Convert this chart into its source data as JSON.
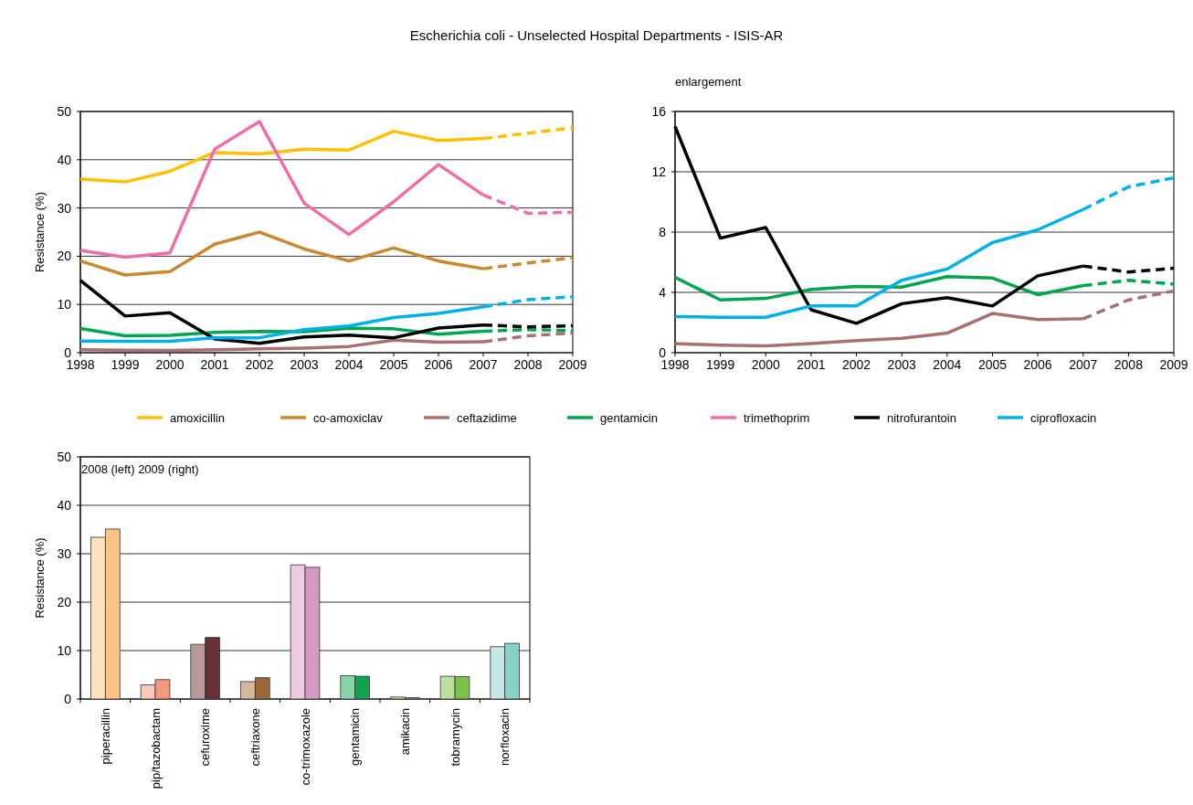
{
  "chart_data": [
    {
      "type": "line",
      "title": "Escherichia coli - Unselected Hospital Departments - ISIS-AR",
      "ylabel": "Resistance  (%)",
      "xlim": [
        1998,
        2009
      ],
      "xticks": [
        1998,
        1999,
        2000,
        2001,
        2002,
        2003,
        2004,
        2005,
        2006,
        2007,
        2008,
        2009
      ],
      "ylim": [
        0,
        50
      ],
      "yticks": [
        0,
        10,
        20,
        30,
        40,
        50
      ],
      "grid": "y",
      "legend": "bottom",
      "series": [
        {
          "name": "amoxicillin",
          "color": "#ffc000",
          "x": [
            1998,
            1999,
            2000,
            2001,
            2002,
            2003,
            2004,
            2005,
            2006,
            2007
          ],
          "values": [
            36,
            35.4,
            37.6,
            41.5,
            41.2,
            42.2,
            42,
            45.9,
            44,
            44.4
          ]
        },
        {
          "color": "#ffc000",
          "line_style": "dashed",
          "x": [
            2007,
            2008,
            2009
          ],
          "values": [
            44.4,
            45.5,
            46.6
          ]
        },
        {
          "name": "co-amoxiclav",
          "color": "#c8892f",
          "x": [
            1998,
            1999,
            2000,
            2001,
            2002,
            2003,
            2004,
            2005,
            2006,
            2007
          ],
          "values": [
            19,
            16.1,
            16.8,
            22.5,
            25,
            21.5,
            19,
            21.7,
            19,
            17.4
          ]
        },
        {
          "color": "#c8892f",
          "line_style": "dashed",
          "x": [
            2007,
            2008,
            2009
          ],
          "values": [
            17.4,
            18.6,
            19.7
          ]
        },
        {
          "name": "ceftazidime",
          "color": "#a87070",
          "x": [
            1998,
            1999,
            2000,
            2001,
            2002,
            2003,
            2004,
            2005,
            2006,
            2007
          ],
          "values": [
            0.6,
            0.5,
            0.45,
            0.6,
            0.8,
            0.95,
            1.3,
            2.6,
            2.2,
            2.25
          ]
        },
        {
          "color": "#a87070",
          "line_style": "dashed",
          "x": [
            2007,
            2008,
            2009
          ],
          "values": [
            2.25,
            3.5,
            4.1
          ]
        },
        {
          "name": "gentamicin",
          "color": "#00a550",
          "x": [
            1998,
            1999,
            2000,
            2001,
            2002,
            2003,
            2004,
            2005,
            2006,
            2007
          ],
          "values": [
            5,
            3.5,
            3.6,
            4.2,
            4.4,
            4.35,
            5.05,
            4.95,
            3.85,
            4.45
          ]
        },
        {
          "color": "#00a550",
          "line_style": "dashed",
          "x": [
            2007,
            2008,
            2009
          ],
          "values": [
            4.45,
            4.8,
            4.55
          ]
        },
        {
          "name": "trimethoprim",
          "color": "#ee6fa8",
          "x": [
            1998,
            1999,
            2000,
            2001,
            2002,
            2003,
            2004,
            2005,
            2006,
            2007
          ],
          "values": [
            21.2,
            19.8,
            20.7,
            42.2,
            47.9,
            31,
            24.5,
            31.3,
            39,
            32.7
          ]
        },
        {
          "color": "#ee6fa8",
          "line_style": "dashed",
          "x": [
            2007,
            2008,
            2009
          ],
          "values": [
            32.7,
            28.9,
            29.1
          ]
        },
        {
          "name": "nitrofurantoin",
          "color": "#000000",
          "x": [
            1998,
            1999,
            2000,
            2001,
            2002,
            2003,
            2004,
            2005,
            2006,
            2007
          ],
          "values": [
            15,
            7.6,
            8.3,
            2.85,
            1.95,
            3.25,
            3.65,
            3.1,
            5.1,
            5.75
          ]
        },
        {
          "color": "#000000",
          "line_style": "dashed",
          "x": [
            2007,
            2008,
            2009
          ],
          "values": [
            5.75,
            5.35,
            5.6
          ]
        },
        {
          "name": "ciprofloxacin",
          "color": "#00b0e8",
          "x": [
            1998,
            1999,
            2000,
            2001,
            2002,
            2003,
            2004,
            2005,
            2006,
            2007
          ],
          "values": [
            2.4,
            2.35,
            2.35,
            3.1,
            3.1,
            4.8,
            5.55,
            7.3,
            8.15,
            9.5
          ]
        },
        {
          "color": "#00b0e8",
          "line_style": "dashed",
          "x": [
            2007,
            2008,
            2009
          ],
          "values": [
            9.5,
            11,
            11.6
          ]
        }
      ]
    },
    {
      "type": "line",
      "title": "enlargement",
      "xlim": [
        1998,
        2009
      ],
      "xticks": [
        1998,
        1999,
        2000,
        2001,
        2002,
        2003,
        2004,
        2005,
        2006,
        2007,
        2008,
        2009
      ],
      "ylim": [
        0,
        16
      ],
      "yticks": [
        0,
        4,
        8,
        12,
        16
      ],
      "grid": "y",
      "series": [
        {
          "color": "#a87070",
          "x": [
            1998,
            1999,
            2000,
            2001,
            2002,
            2003,
            2004,
            2005,
            2006,
            2007
          ],
          "values": [
            0.6,
            0.5,
            0.45,
            0.6,
            0.8,
            0.95,
            1.3,
            2.6,
            2.2,
            2.25
          ]
        },
        {
          "color": "#a87070",
          "line_style": "dashed",
          "x": [
            2007,
            2008,
            2009
          ],
          "values": [
            2.25,
            3.5,
            4.1
          ]
        },
        {
          "color": "#00a550",
          "x": [
            1998,
            1999,
            2000,
            2001,
            2002,
            2003,
            2004,
            2005,
            2006,
            2007
          ],
          "values": [
            5,
            3.5,
            3.6,
            4.2,
            4.4,
            4.35,
            5.05,
            4.95,
            3.85,
            4.45
          ]
        },
        {
          "color": "#00a550",
          "line_style": "dashed",
          "x": [
            2007,
            2008,
            2009
          ],
          "values": [
            4.45,
            4.8,
            4.55
          ]
        },
        {
          "color": "#000000",
          "x": [
            1998,
            1999,
            2000,
            2001,
            2002,
            2003,
            2004,
            2005,
            2006,
            2007
          ],
          "values": [
            15,
            7.6,
            8.3,
            2.85,
            1.95,
            3.25,
            3.65,
            3.1,
            5.1,
            5.75
          ]
        },
        {
          "color": "#000000",
          "line_style": "dashed",
          "x": [
            2007,
            2008,
            2009
          ],
          "values": [
            5.75,
            5.35,
            5.6
          ]
        },
        {
          "color": "#00b0e8",
          "x": [
            1998,
            1999,
            2000,
            2001,
            2002,
            2003,
            2004,
            2005,
            2006,
            2007
          ],
          "values": [
            2.4,
            2.35,
            2.35,
            3.1,
            3.1,
            4.8,
            5.55,
            7.3,
            8.15,
            9.5
          ]
        },
        {
          "color": "#00b0e8",
          "line_style": "dashed",
          "x": [
            2007,
            2008,
            2009
          ],
          "values": [
            9.5,
            11,
            11.6
          ]
        }
      ]
    },
    {
      "type": "bar",
      "ylabel": "Resistance  (%)",
      "annotations": [
        "2008 (left) 2009 (right)"
      ],
      "categories": [
        "piperacillin",
        "pip/tazobactam",
        "cefuroxime",
        "ceftriaxone",
        "co-trimoxazole",
        "gentamicin",
        "amikacin",
        "tobramycin",
        "norfloxacin"
      ],
      "ylim": [
        0,
        50
      ],
      "yticks": [
        0,
        10,
        20,
        30,
        40,
        50
      ],
      "grid": "y",
      "series": [
        {
          "colors": [
            "#fde3c3",
            "#f9c9b8",
            "#b89a9a",
            "#d4b89a",
            "#eccbe3",
            "#85d4a8",
            "#c8e3b8",
            "#bde0a0",
            "#c5e8e4"
          ],
          "values": [
            33.4,
            2.9,
            11.3,
            3.6,
            27.7,
            4.8,
            0.4,
            4.7,
            10.8
          ]
        },
        {
          "colors": [
            "#f9c485",
            "#f29a7c",
            "#6b2f38",
            "#9c6638",
            "#d49ac5",
            "#13a24e",
            "#6ab64a",
            "#7cc24a",
            "#86d1c8"
          ],
          "values": [
            35.1,
            4,
            12.7,
            4.4,
            27.2,
            4.7,
            0.3,
            4.6,
            11.5
          ]
        }
      ]
    }
  ]
}
